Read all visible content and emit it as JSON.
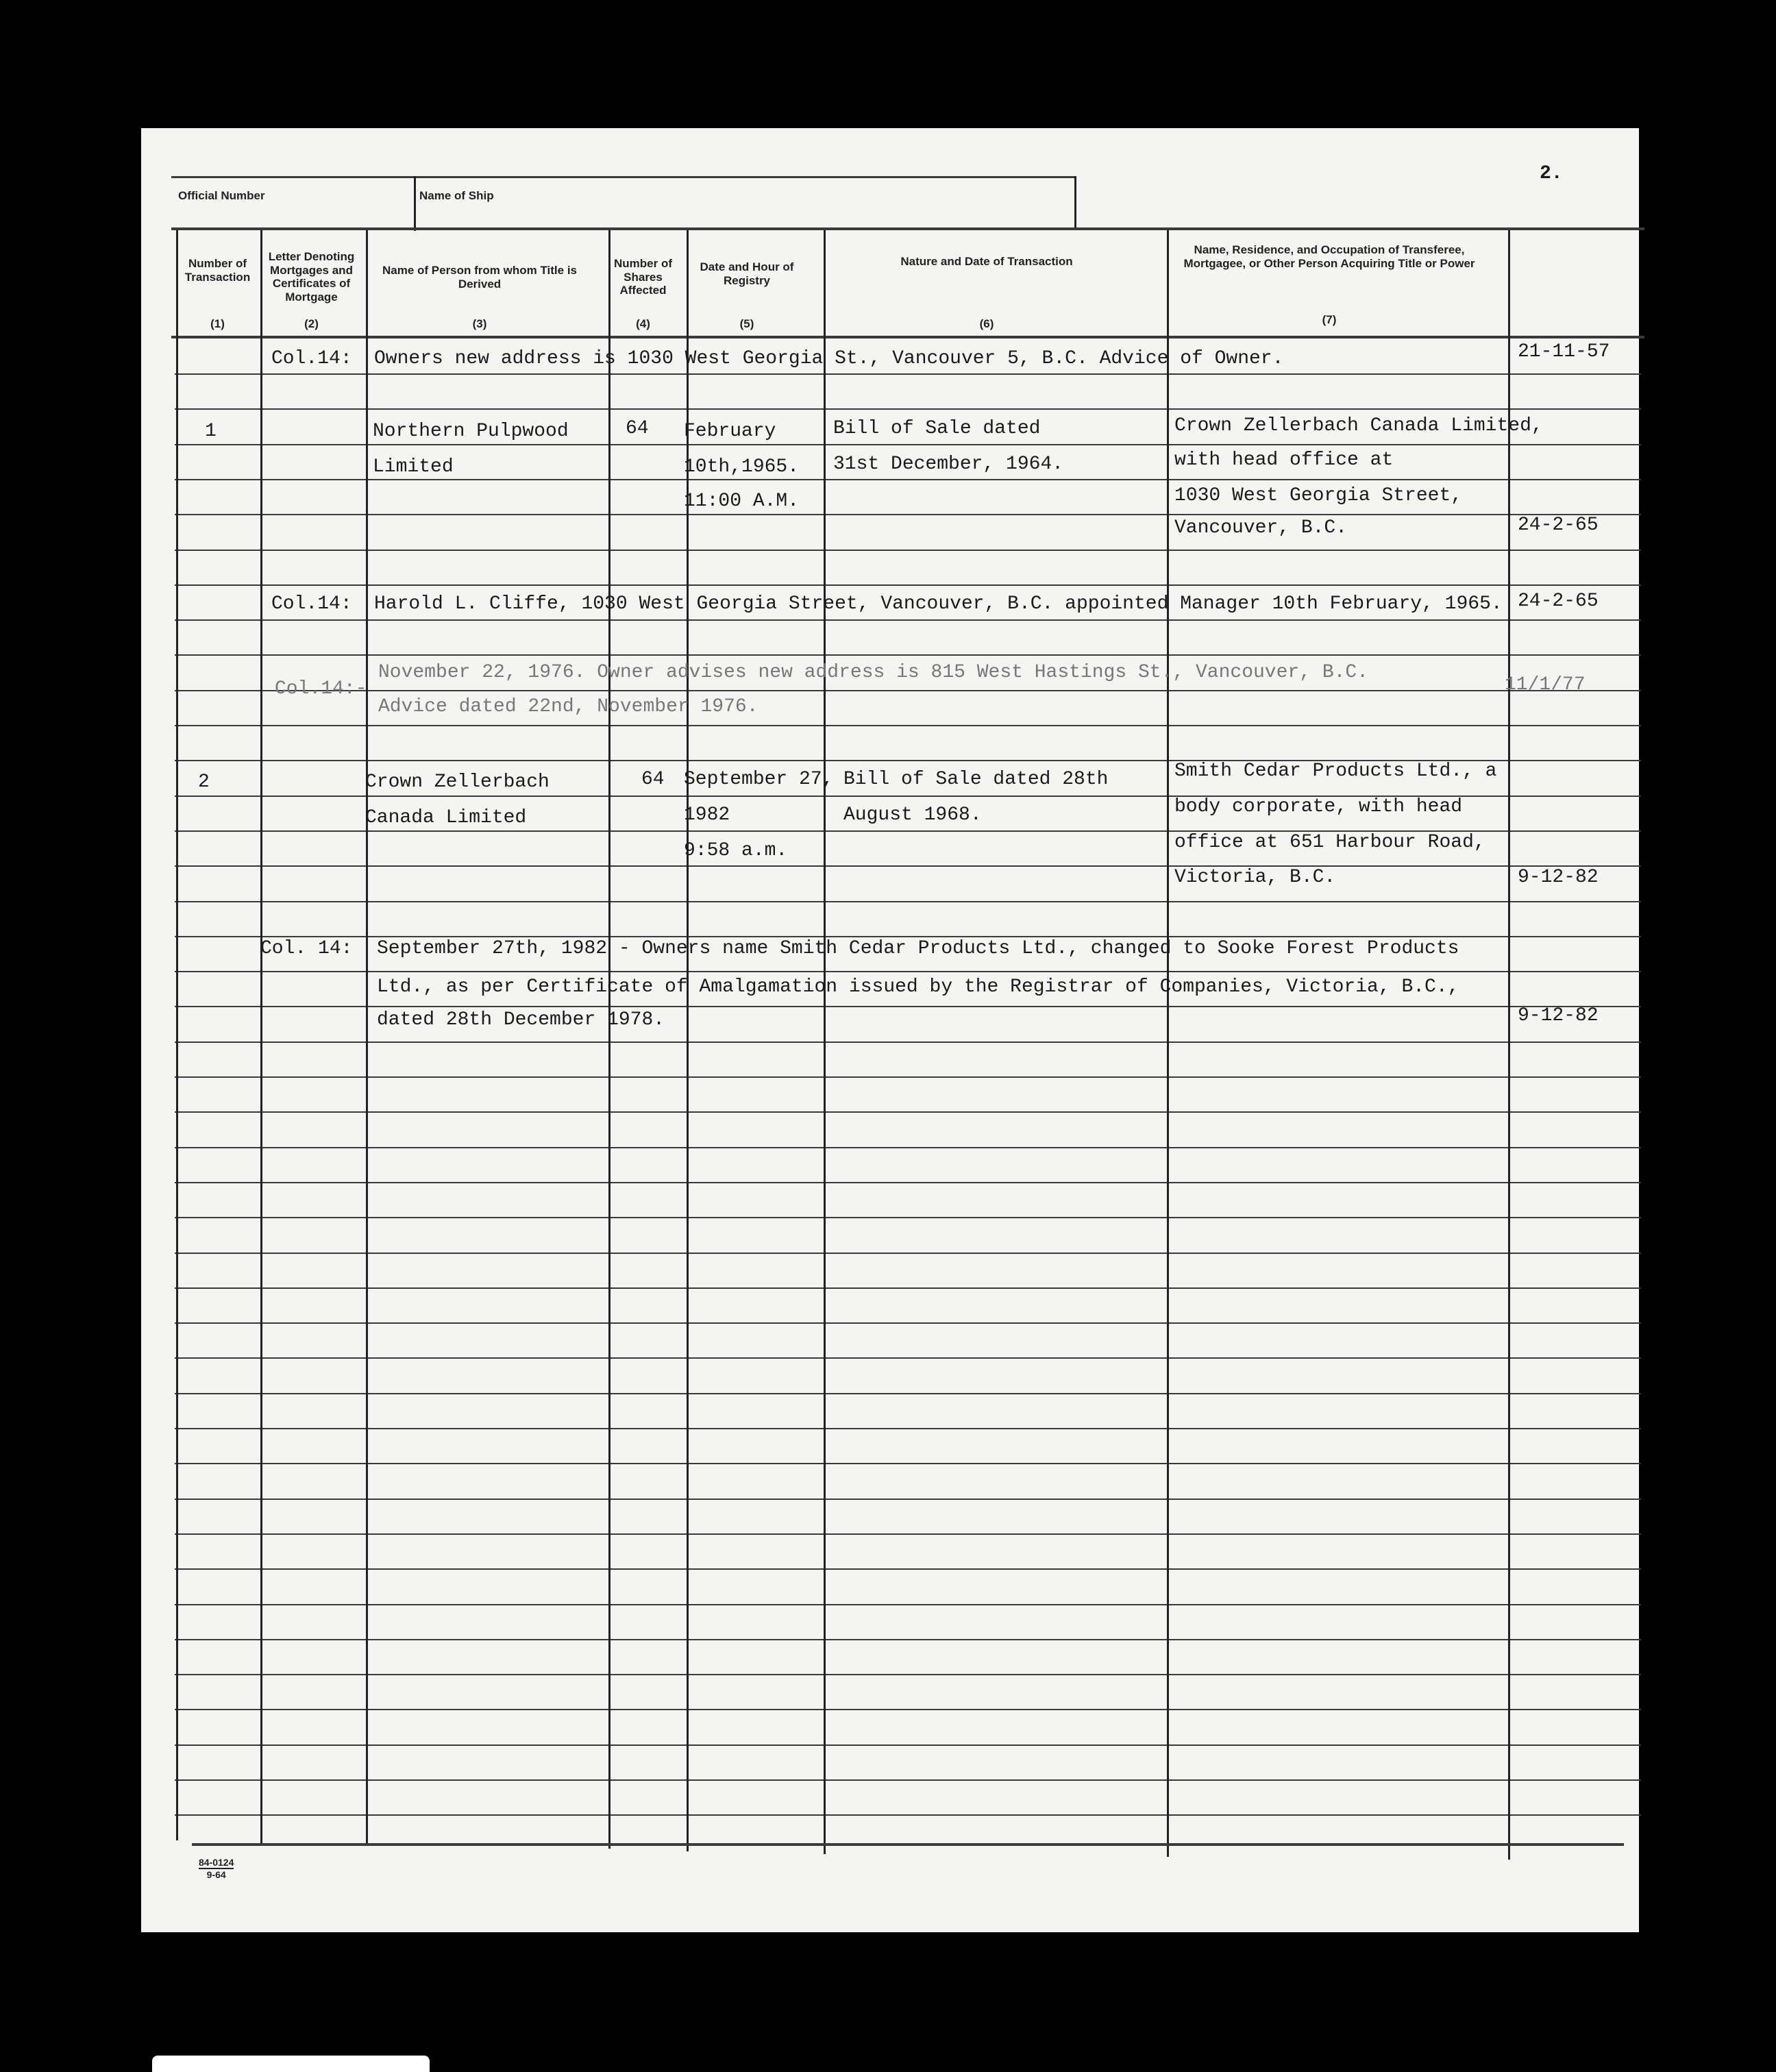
{
  "page_number": "2.",
  "top_fields": {
    "official_number_label": "Official Number",
    "ship_name_label": "Name of Ship"
  },
  "columns": [
    {
      "label": "Number of Transaction",
      "num": "(1)"
    },
    {
      "label": "Letter Denoting Mortgages and Certificates of Mortgage",
      "num": "(2)"
    },
    {
      "label": "Name of Person from whom Title is Derived",
      "num": "(3)"
    },
    {
      "label": "Number of Shares Affected",
      "num": "(4)"
    },
    {
      "label": "Date and Hour of Registry",
      "num": "(5)"
    },
    {
      "label": "Nature and Date of Transaction",
      "num": "(6)"
    },
    {
      "label": "Name, Residence, and Occupation of Transferee, Mortgagee, or Other Person Acquiring Title or Power",
      "num": "(7)"
    }
  ],
  "entries": {
    "e1": {
      "col2": "Col.14:",
      "text": "Owners new address is 1030 West Georgia St., Vancouver 5, B.C. Advice of Owner.",
      "date": "21-11-57"
    },
    "t1": {
      "number": "1",
      "from": [
        "Northern Pulpwood",
        "Limited"
      ],
      "shares": "64",
      "registry": [
        "February",
        "10th,1965.",
        "11:00 A.M."
      ],
      "nature": [
        "Bill of Sale dated",
        "31st December, 1964."
      ],
      "transferee": [
        "Crown Zellerbach Canada Limited,",
        "with head office at",
        "1030 West Georgia Street,",
        "Vancouver, B.C."
      ],
      "date": "24-2-65"
    },
    "e2": {
      "col2": "Col.14:",
      "text": "Harold L. Cliffe, 1030 West Georgia Street, Vancouver, B.C. appointed Manager 10th February, 1965.",
      "date": "24-2-65"
    },
    "e3": {
      "col2": "Col.14:-",
      "lines": [
        "November 22, 1976. Owner advises new address is 815 West Hastings St., Vancouver, B.C.",
        "Advice dated 22nd, November 1976."
      ],
      "date": "11/1/77"
    },
    "t2": {
      "number": "2",
      "from": [
        "Crown Zellerbach",
        "Canada Limited"
      ],
      "shares": "64",
      "registry": [
        "September 27,",
        "1982",
        "9:58 a.m."
      ],
      "nature": [
        "Bill of Sale dated 28th",
        "August 1968."
      ],
      "transferee": [
        "Smith Cedar Products Ltd., a",
        "body corporate, with head",
        "office at 651 Harbour Road,",
        "Victoria, B.C."
      ],
      "date": "9-12-82"
    },
    "e4": {
      "col2": "Col. 14:",
      "lines": [
        "September 27th, 1982 - Owners name Smith Cedar Products Ltd., changed to Sooke Forest Products",
        "Ltd., as per Certificate of Amalgamation issued by the Registrar of Companies, Victoria, B.C.,",
        "dated 28th December 1978."
      ],
      "date": "9-12-82"
    }
  },
  "form_number": {
    "top": "84-0124",
    "bottom": "9-64"
  }
}
